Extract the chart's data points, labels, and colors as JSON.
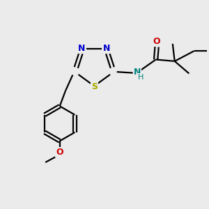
{
  "bg_color": "#ebebeb",
  "bond_color": "#000000",
  "N_color": "#0000cc",
  "S_color": "#aaaa00",
  "O_color": "#cc0000",
  "NH_color": "#008080",
  "line_width": 1.6,
  "figsize": [
    3.0,
    3.0
  ],
  "dpi": 100,
  "xlim": [
    0,
    10
  ],
  "ylim": [
    0,
    10
  ]
}
